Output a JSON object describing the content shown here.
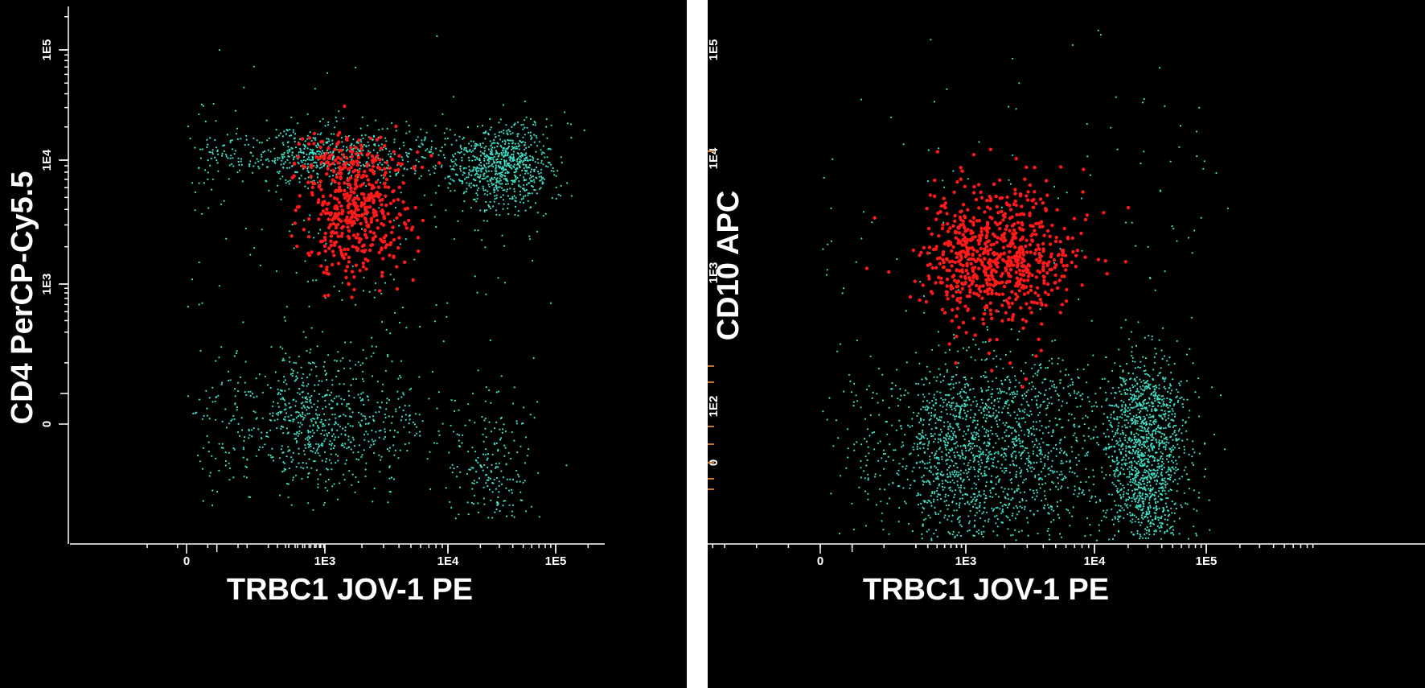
{
  "colors": {
    "background": "#000000",
    "population_main": "#40e0c8",
    "population_gated": "#ff1a1a",
    "axis": "#ffffff",
    "threshold_marks": "#c8732a"
  },
  "chart_data": [
    {
      "type": "scatter",
      "xlabel": "TRBC1  JOV-1  PE",
      "ylabel": "CD4 PerCP-Cy5.5",
      "x_scale": "biexponential",
      "y_scale": "biexponential",
      "x_ticks": [
        "0",
        "1E3",
        "1E4",
        "1E5"
      ],
      "y_ticks": [
        "0",
        "1E3",
        "1E4",
        "1E5"
      ],
      "grid": false,
      "series": [
        {
          "color": "#40e0c8",
          "clusters": [
            {
              "x_center": 30000,
              "y_center": 9000,
              "x_spread_decades": 0.25,
              "y_spread_decades": 0.18,
              "relative_count": 0.3
            },
            {
              "x_center": 900,
              "y_center": 11000,
              "x_spread_decades": 0.55,
              "y_spread_decades": 0.12,
              "relative_count": 0.24
            },
            {
              "x_center": 800,
              "y_center": 0,
              "x_spread_decades": 0.5,
              "y_spread_linear": 120,
              "relative_count": 0.3
            },
            {
              "x_center": 25000,
              "y_center": -150,
              "x_spread_decades": 0.2,
              "y_spread_linear": 120,
              "relative_count": 0.08
            },
            {
              "x_center": 1500,
              "y_center": 2000,
              "x_spread_decades": 0.9,
              "y_spread_decades": 0.9,
              "relative_count": 0.08
            }
          ]
        },
        {
          "color": "#ff1a1a",
          "clusters": [
            {
              "x_center": 1800,
              "y_center": 4000,
              "x_spread_decades": 0.22,
              "y_spread_decades": 0.28,
              "relative_count": 0.85
            },
            {
              "x_center": 1500,
              "y_center": 10000,
              "x_spread_decades": 0.3,
              "y_spread_decades": 0.1,
              "relative_count": 0.15
            }
          ]
        }
      ]
    },
    {
      "type": "scatter",
      "xlabel": "TRBC1  JOV-1  PE",
      "ylabel": "CD10  APC",
      "x_scale": "biexponential",
      "y_scale": "biexponential",
      "x_ticks": [
        "0",
        "1E3",
        "1E4",
        "1E5"
      ],
      "y_ticks": [
        "0",
        "1E2",
        "1E3",
        "1E4",
        "1E5"
      ],
      "grid": false,
      "series": [
        {
          "color": "#40e0c8",
          "clusters": [
            {
              "x_center": 1400,
              "y_center": 20,
              "x_spread_decades": 0.5,
              "y_spread_linear": 100,
              "relative_count": 0.55
            },
            {
              "x_center": 30000,
              "y_center": 20,
              "x_spread_decades": 0.18,
              "y_spread_linear": 100,
              "relative_count": 0.4
            },
            {
              "x_center": 5000,
              "y_center": 2000,
              "x_spread_decades": 1.2,
              "y_spread_decades": 1.0,
              "relative_count": 0.05
            }
          ]
        },
        {
          "color": "#ff1a1a",
          "clusters": [
            {
              "x_center": 1800,
              "y_center": 1400,
              "x_spread_decades": 0.3,
              "y_spread_decades": 0.3,
              "relative_count": 1.0
            }
          ]
        }
      ]
    }
  ]
}
